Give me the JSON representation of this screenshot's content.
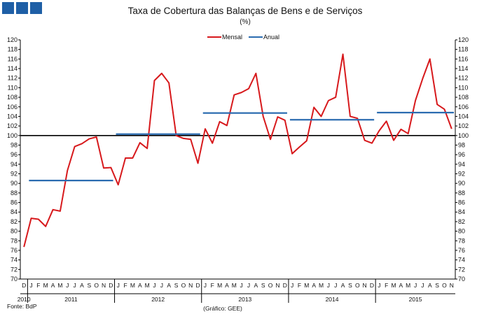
{
  "header": {
    "brand_blocks": 3
  },
  "chart_data": {
    "type": "line",
    "title": "Taxa de Cobertura das Balanças de Bens e de Serviços",
    "subtitle": "(%)",
    "ylim": [
      70,
      120
    ],
    "yticks": [
      70,
      72,
      74,
      76,
      78,
      80,
      82,
      84,
      86,
      88,
      90,
      92,
      94,
      96,
      98,
      100,
      102,
      104,
      106,
      108,
      110,
      112,
      114,
      116,
      118,
      120
    ],
    "reference_line": 100,
    "grid": false,
    "legend": {
      "position": "top-center",
      "entries": [
        "Mensal",
        "Anual"
      ]
    },
    "months": [
      "D",
      "J",
      "F",
      "M",
      "A",
      "M",
      "J",
      "J",
      "A",
      "S",
      "O",
      "N",
      "D",
      "J",
      "F",
      "M",
      "A",
      "M",
      "J",
      "J",
      "A",
      "S",
      "O",
      "N",
      "D",
      "J",
      "F",
      "M",
      "A",
      "M",
      "J",
      "J",
      "A",
      "S",
      "O",
      "N",
      "D",
      "J",
      "F",
      "M",
      "A",
      "M",
      "J",
      "J",
      "A",
      "S",
      "O",
      "N",
      "D",
      "J",
      "F",
      "M",
      "A",
      "M",
      "J",
      "J",
      "A",
      "S",
      "O",
      "N"
    ],
    "years": [
      {
        "label": "2010",
        "start": 0,
        "end": 0
      },
      {
        "label": "2011",
        "start": 1,
        "end": 12
      },
      {
        "label": "2012",
        "start": 13,
        "end": 24
      },
      {
        "label": "2013",
        "start": 25,
        "end": 36
      },
      {
        "label": "2014",
        "start": 37,
        "end": 48
      },
      {
        "label": "2015",
        "start": 49,
        "end": 59
      }
    ],
    "series": [
      {
        "name": "Mensal",
        "color": "#d7191c",
        "values": [
          76.7,
          82.7,
          82.5,
          81.0,
          84.5,
          84.2,
          92.7,
          97.7,
          98.3,
          99.3,
          99.7,
          93.2,
          93.3,
          89.7,
          95.3,
          95.3,
          98.5,
          97.3,
          111.5,
          113.0,
          111.0,
          100.0,
          99.4,
          99.2,
          94.2,
          101.4,
          98.4,
          102.9,
          102.1,
          108.5,
          109.0,
          109.8,
          113.0,
          104.0,
          99.2,
          103.9,
          103.2,
          96.2,
          97.6,
          98.9,
          105.9,
          104.0,
          107.3,
          108.0,
          117.0,
          104.0,
          103.6,
          99.0,
          98.4,
          101.0,
          103.0,
          99.0,
          101.3,
          100.4,
          107.3,
          111.9,
          116.0,
          106.5,
          105.5,
          101.4
        ]
      },
      {
        "name": "Anual",
        "color": "#2b6cb0",
        "segments": [
          {
            "start": 1,
            "end": 12,
            "value": 90.6
          },
          {
            "start": 13,
            "end": 24,
            "value": 100.3
          },
          {
            "start": 25,
            "end": 36,
            "value": 104.7
          },
          {
            "start": 37,
            "end": 48,
            "value": 103.3
          },
          {
            "start": 49,
            "end": 59,
            "value": 104.8
          }
        ]
      }
    ],
    "source": "Fonte: BdP",
    "credit": "(Gráfico: GEE)"
  }
}
